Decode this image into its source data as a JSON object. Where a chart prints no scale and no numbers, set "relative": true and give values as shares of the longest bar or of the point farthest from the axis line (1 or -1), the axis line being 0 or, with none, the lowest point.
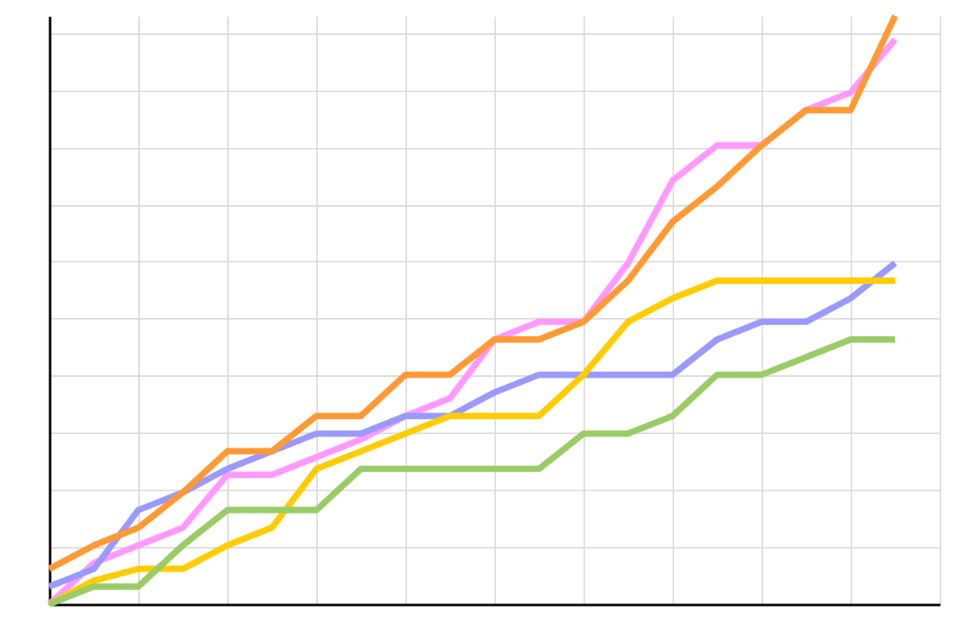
{
  "chart_data": {
    "type": "line",
    "relative": true,
    "grid": true,
    "line_style": "solid",
    "categories": [
      null,
      null,
      null,
      null,
      null,
      null,
      null,
      null,
      null,
      null,
      null,
      null,
      null,
      null,
      null,
      null,
      null,
      null,
      null,
      null
    ],
    "series": [
      {
        "color": "#ff99ff",
        "values": [
          0.0,
          0.07,
          0.1,
          0.13,
          0.22,
          0.22,
          0.25,
          0.28,
          0.32,
          0.35,
          0.45,
          0.48,
          0.48,
          0.58,
          0.72,
          0.78,
          0.78,
          0.84,
          0.87,
          0.96
        ]
      },
      {
        "color": "#9999ff",
        "values": [
          0.03,
          0.06,
          0.16,
          0.19,
          0.23,
          0.26,
          0.29,
          0.29,
          0.32,
          0.32,
          0.36,
          0.39,
          0.39,
          0.39,
          0.39,
          0.45,
          0.48,
          0.48,
          0.52,
          0.58
        ]
      },
      {
        "color": "#ffcc00",
        "values": [
          0.0,
          0.04,
          0.06,
          0.06,
          0.1,
          0.13,
          0.23,
          0.26,
          0.29,
          0.32,
          0.32,
          0.32,
          0.39,
          0.48,
          0.52,
          0.55,
          0.55,
          0.55,
          0.55,
          0.55
        ]
      },
      {
        "color": "#99cc66",
        "values": [
          0.0,
          0.03,
          0.03,
          0.1,
          0.16,
          0.16,
          0.16,
          0.23,
          0.23,
          0.23,
          0.23,
          0.23,
          0.29,
          0.29,
          0.32,
          0.39,
          0.39,
          0.42,
          0.45,
          0.45
        ]
      },
      {
        "color": "#ff9933",
        "values": [
          0.06,
          0.1,
          0.13,
          0.19,
          0.26,
          0.26,
          0.32,
          0.32,
          0.39,
          0.39,
          0.45,
          0.45,
          0.48,
          0.55,
          0.65,
          0.71,
          0.78,
          0.84,
          0.84,
          1.0
        ]
      }
    ]
  }
}
